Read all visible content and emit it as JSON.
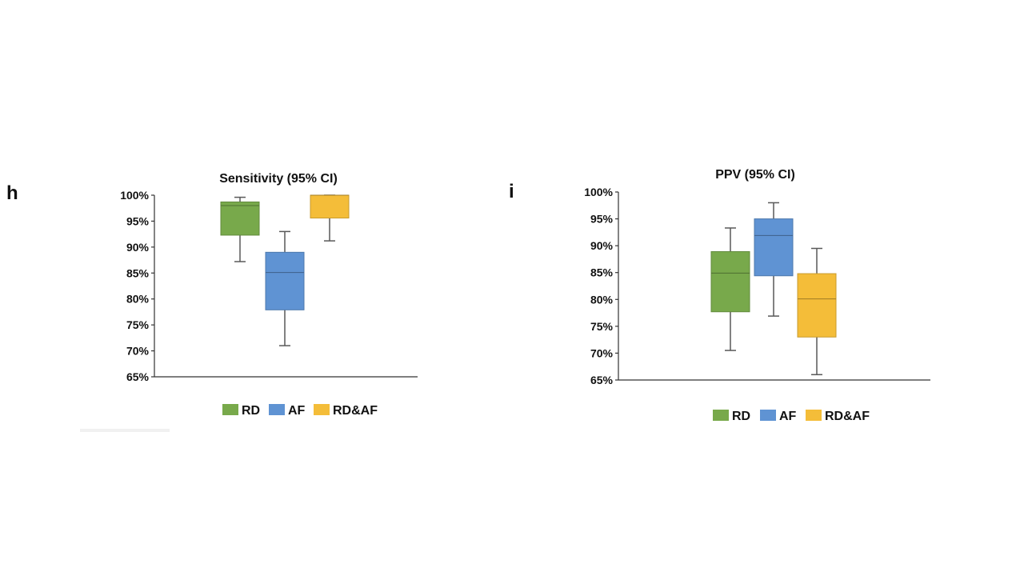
{
  "panels": {
    "h_label": "h",
    "i_label": "i"
  },
  "chart_data": [
    {
      "id": "sensitivity",
      "type": "boxplot",
      "title": "Sensitivity (95% CI)",
      "ylim": [
        65,
        100
      ],
      "yticks": [
        "65%",
        "70%",
        "75%",
        "80%",
        "85%",
        "90%",
        "95%",
        "100%"
      ],
      "ytick_values": [
        65,
        70,
        75,
        80,
        85,
        90,
        95,
        100
      ],
      "grid": false,
      "legend_position": "bottom",
      "series": [
        {
          "name": "RD",
          "color": "#78a94b",
          "whisker_low": 87.2,
          "q1": 92.3,
          "median": 98.0,
          "q3": 98.7,
          "whisker_high": 99.6
        },
        {
          "name": "AF",
          "color": "#5f93d3",
          "whisker_low": 71.0,
          "q1": 77.9,
          "median": 85.1,
          "q3": 89.0,
          "whisker_high": 93.0
        },
        {
          "name": "RD&AF",
          "color": "#f4bd39",
          "whisker_low": 91.2,
          "q1": 95.6,
          "median": 100.0,
          "q3": 100.0,
          "whisker_high": 100.0
        }
      ]
    },
    {
      "id": "ppv",
      "type": "boxplot",
      "title": "PPV (95% CI)",
      "ylim": [
        65,
        100
      ],
      "yticks": [
        "65%",
        "70%",
        "75%",
        "80%",
        "85%",
        "90%",
        "95%",
        "100%"
      ],
      "ytick_values": [
        65,
        70,
        75,
        80,
        85,
        90,
        95,
        100
      ],
      "grid": false,
      "legend_position": "bottom",
      "series": [
        {
          "name": "RD",
          "color": "#78a94b",
          "whisker_low": 70.5,
          "q1": 77.7,
          "median": 84.9,
          "q3": 88.9,
          "whisker_high": 93.3
        },
        {
          "name": "AF",
          "color": "#5f93d3",
          "whisker_low": 76.9,
          "q1": 84.4,
          "median": 91.9,
          "q3": 95.0,
          "whisker_high": 98.0
        },
        {
          "name": "RD&AF",
          "color": "#f4bd39",
          "whisker_low": 66.0,
          "q1": 73.0,
          "median": 80.1,
          "q3": 84.8,
          "whisker_high": 89.5
        }
      ]
    }
  ]
}
